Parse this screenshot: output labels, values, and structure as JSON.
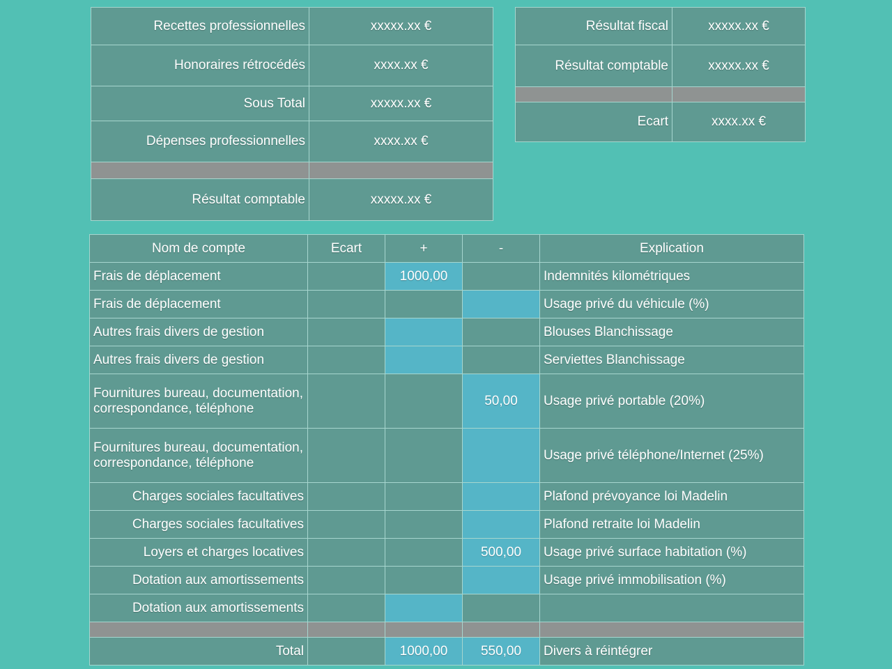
{
  "summary_left": [
    {
      "label": "Recettes professionnelles",
      "value": "xxxxx.xx €"
    },
    {
      "label": "Honoraires rétrocédés",
      "value": "xxxx.xx €"
    },
    {
      "label": "Sous Total",
      "value": "xxxxx.xx €"
    },
    {
      "label": "Dépenses professionnelles",
      "value": "xxxx.xx €"
    },
    {
      "label": "Résultat comptable",
      "value": "xxxxx.xx €"
    }
  ],
  "summary_right": [
    {
      "label": "Résultat fiscal",
      "value": "xxxxx.xx €"
    },
    {
      "label": "Résultat comptable",
      "value": "xxxxx.xx €"
    },
    {
      "label": "Ecart",
      "value": "xxxx.xx €"
    }
  ],
  "accounts": {
    "headers": {
      "account": "Nom de compte",
      "gap": "Ecart",
      "plus": "+",
      "minus": "-",
      "explanation": "Explication"
    },
    "rows": [
      {
        "account": "Frais de déplacement",
        "gap": "",
        "plus": "1000,00",
        "minus": "",
        "explanation": "Indemnités kilométriques"
      },
      {
        "account": "Frais de déplacement",
        "gap": "",
        "plus": "",
        "minus": "",
        "explanation": "Usage privé du véhicule (%)"
      },
      {
        "account": "Autres frais divers de gestion",
        "gap": "",
        "plus": "",
        "minus": "",
        "explanation": "Blouses Blanchissage"
      },
      {
        "account": "Autres frais divers de gestion",
        "gap": "",
        "plus": "",
        "minus": "",
        "explanation": "Serviettes Blanchissage"
      },
      {
        "account": "Fournitures bureau, documentation, correspondance, téléphone",
        "gap": "",
        "plus": "",
        "minus": "50,00",
        "explanation": "Usage privé portable (20%)"
      },
      {
        "account": "Fournitures bureau, documentation, correspondance, téléphone",
        "gap": "",
        "plus": "",
        "minus": "",
        "explanation": "Usage privé téléphone/Internet (25%)"
      },
      {
        "account": "Charges sociales facultatives",
        "gap": "",
        "plus": "",
        "minus": "",
        "explanation": "Plafond prévoyance loi Madelin"
      },
      {
        "account": "Charges sociales facultatives",
        "gap": "",
        "plus": "",
        "minus": "",
        "explanation": "Plafond retraite loi Madelin"
      },
      {
        "account": "Loyers et charges locatives",
        "gap": "",
        "plus": "",
        "minus": "500,00",
        "explanation": "Usage privé surface habitation (%)"
      },
      {
        "account": "Dotation aux amortissements",
        "gap": "",
        "plus": "",
        "minus": "",
        "explanation": "Usage privé immobilisation (%)"
      },
      {
        "account": "Dotation aux amortissements",
        "gap": "",
        "plus": "",
        "minus": "",
        "explanation": ""
      }
    ],
    "total": {
      "label": "Total",
      "gap": "",
      "plus": "1000,00",
      "minus": "550,00",
      "explanation": "Divers à réintégrer"
    }
  },
  "colors": {
    "background": "#52c0b4",
    "cell": "#5f9a92",
    "input_cell": "#55b5c7",
    "separator": "#8f9392",
    "border": "#a7d6cf"
  }
}
